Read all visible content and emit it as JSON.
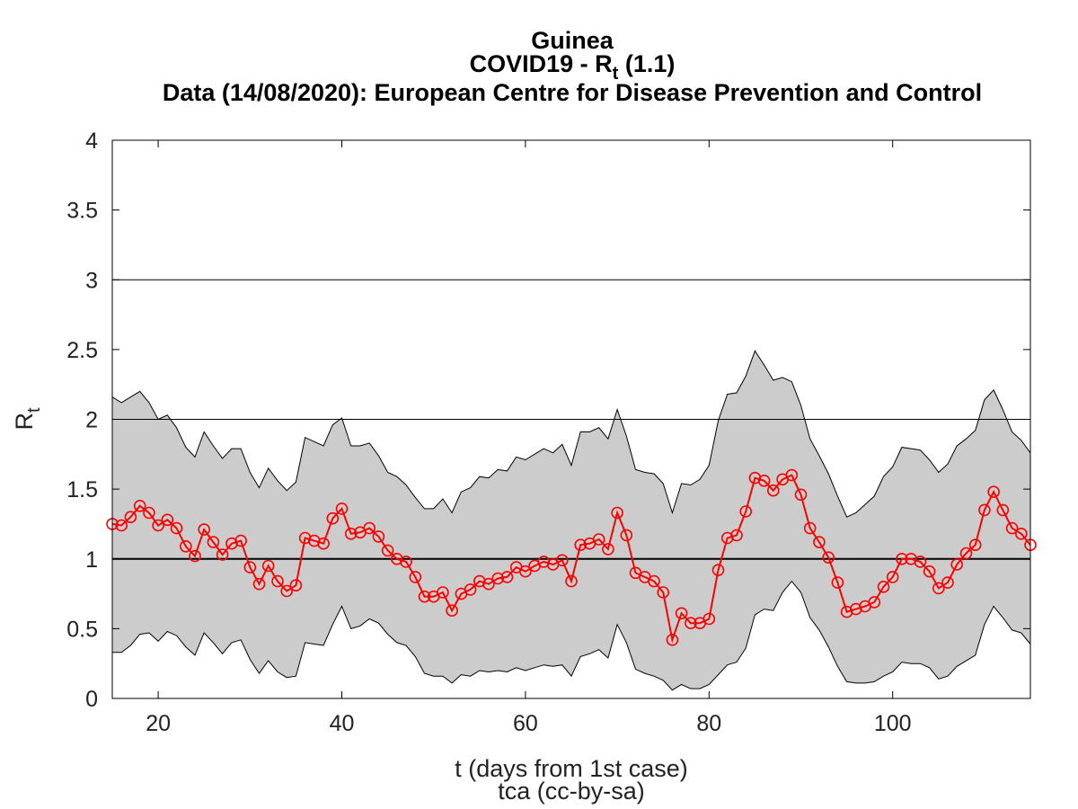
{
  "chart_data": {
    "type": "line",
    "title": "Guinea",
    "subtitle_prefix": "COVID19 - R",
    "subtitle_sub": "t",
    "subtitle_suffix": " (1.1)",
    "subtitle2": "Data (14/08/2020): European Centre for Disease Prevention and Control",
    "xlabel": "t (days from 1st case)",
    "ylabel_main": "R",
    "ylabel_sub": "t",
    "credit": "tca (cc-by-sa)",
    "xlim": [
      15,
      115
    ],
    "ylim": [
      0,
      4
    ],
    "xticks": [
      20,
      40,
      60,
      80,
      100
    ],
    "yticks": [
      0,
      0.5,
      1,
      1.5,
      2,
      2.5,
      3,
      3.5,
      4
    ],
    "ytick_labels": [
      "0",
      "0.5",
      "1",
      "1.5",
      "2",
      "2.5",
      "3",
      "3.5",
      "4"
    ],
    "hlines": [
      1,
      2,
      3
    ],
    "grid": false,
    "series": [
      {
        "color": "#ff0000",
        "marker": "circle",
        "x": [
          15,
          16,
          17,
          18,
          19,
          20,
          21,
          22,
          23,
          24,
          25,
          26,
          27,
          28,
          29,
          30,
          31,
          32,
          33,
          34,
          35,
          36,
          37,
          38,
          39,
          40,
          41,
          42,
          43,
          44,
          45,
          46,
          47,
          48,
          49,
          50,
          51,
          52,
          53,
          54,
          55,
          56,
          57,
          58,
          59,
          60,
          61,
          62,
          63,
          64,
          65,
          66,
          67,
          68,
          69,
          70,
          71,
          72,
          73,
          74,
          75,
          76,
          77,
          78,
          79,
          80,
          81,
          82,
          83,
          84,
          85,
          86,
          87,
          88,
          89,
          90,
          91,
          92,
          93,
          94,
          95,
          96,
          97,
          98,
          99,
          100,
          101,
          102,
          103,
          104,
          105,
          106,
          107,
          108,
          109,
          110,
          111,
          112,
          113,
          114,
          115
        ],
        "y": [
          1.25,
          1.24,
          1.3,
          1.38,
          1.33,
          1.24,
          1.28,
          1.22,
          1.09,
          1.02,
          1.21,
          1.12,
          1.03,
          1.11,
          1.13,
          0.94,
          0.82,
          0.95,
          0.84,
          0.77,
          0.81,
          1.15,
          1.13,
          1.11,
          1.29,
          1.36,
          1.18,
          1.19,
          1.22,
          1.16,
          1.06,
          1.0,
          0.98,
          0.87,
          0.73,
          0.73,
          0.76,
          0.63,
          0.75,
          0.78,
          0.84,
          0.82,
          0.86,
          0.87,
          0.94,
          0.91,
          0.95,
          0.98,
          0.96,
          0.99,
          0.84,
          1.1,
          1.11,
          1.14,
          1.07,
          1.33,
          1.17,
          0.9,
          0.87,
          0.84,
          0.76,
          0.42,
          0.61,
          0.54,
          0.54,
          0.57,
          0.92,
          1.15,
          1.17,
          1.34,
          1.58,
          1.56,
          1.49,
          1.57,
          1.6,
          1.46,
          1.22,
          1.12,
          1.01,
          0.83,
          0.62,
          0.64,
          0.66,
          0.69,
          0.8,
          0.87,
          1.0,
          1.0,
          0.98,
          0.91,
          0.79,
          0.83,
          0.96,
          1.04,
          1.1,
          1.35,
          1.48,
          1.35,
          1.22,
          1.18,
          1.1
        ]
      }
    ],
    "band": {
      "color": "#cccccc",
      "x": [
        15,
        16,
        17,
        18,
        19,
        20,
        21,
        22,
        23,
        24,
        25,
        26,
        27,
        28,
        29,
        30,
        31,
        32,
        33,
        34,
        35,
        36,
        37,
        38,
        39,
        40,
        41,
        42,
        43,
        44,
        45,
        46,
        47,
        48,
        49,
        50,
        51,
        52,
        53,
        54,
        55,
        56,
        57,
        58,
        59,
        60,
        61,
        62,
        63,
        64,
        65,
        66,
        67,
        68,
        69,
        70,
        71,
        72,
        73,
        74,
        75,
        76,
        77,
        78,
        79,
        80,
        81,
        82,
        83,
        84,
        85,
        86,
        87,
        88,
        89,
        90,
        91,
        92,
        93,
        94,
        95,
        96,
        97,
        98,
        99,
        100,
        101,
        102,
        103,
        104,
        105,
        106,
        107,
        108,
        109,
        110,
        111,
        112,
        113,
        114,
        115
      ],
      "upper": [
        2.16,
        2.12,
        2.16,
        2.2,
        2.12,
        2.0,
        2.03,
        1.94,
        1.8,
        1.73,
        1.91,
        1.81,
        1.72,
        1.79,
        1.79,
        1.62,
        1.51,
        1.65,
        1.56,
        1.49,
        1.55,
        1.87,
        1.84,
        1.81,
        1.96,
        2.01,
        1.81,
        1.81,
        1.83,
        1.74,
        1.62,
        1.59,
        1.53,
        1.44,
        1.36,
        1.36,
        1.43,
        1.33,
        1.48,
        1.51,
        1.59,
        1.58,
        1.64,
        1.63,
        1.73,
        1.71,
        1.75,
        1.79,
        1.76,
        1.82,
        1.67,
        1.91,
        1.91,
        1.94,
        1.86,
        2.07,
        1.88,
        1.64,
        1.62,
        1.61,
        1.54,
        1.33,
        1.54,
        1.53,
        1.57,
        1.67,
        1.99,
        2.18,
        2.19,
        2.31,
        2.49,
        2.39,
        2.28,
        2.3,
        2.27,
        2.1,
        1.86,
        1.74,
        1.61,
        1.45,
        1.3,
        1.33,
        1.39,
        1.45,
        1.59,
        1.66,
        1.8,
        1.79,
        1.78,
        1.71,
        1.62,
        1.68,
        1.81,
        1.86,
        1.92,
        2.14,
        2.21,
        2.07,
        1.91,
        1.85,
        1.76
      ],
      "lower": [
        0.33,
        0.33,
        0.38,
        0.46,
        0.47,
        0.41,
        0.48,
        0.45,
        0.37,
        0.31,
        0.47,
        0.4,
        0.32,
        0.4,
        0.42,
        0.28,
        0.18,
        0.27,
        0.19,
        0.15,
        0.16,
        0.4,
        0.39,
        0.38,
        0.53,
        0.66,
        0.5,
        0.52,
        0.57,
        0.54,
        0.46,
        0.4,
        0.38,
        0.3,
        0.18,
        0.16,
        0.16,
        0.11,
        0.17,
        0.16,
        0.2,
        0.19,
        0.2,
        0.19,
        0.22,
        0.2,
        0.22,
        0.24,
        0.23,
        0.24,
        0.16,
        0.3,
        0.32,
        0.35,
        0.29,
        0.53,
        0.4,
        0.21,
        0.18,
        0.16,
        0.13,
        0.06,
        0.1,
        0.07,
        0.07,
        0.1,
        0.17,
        0.24,
        0.26,
        0.36,
        0.6,
        0.64,
        0.63,
        0.76,
        0.84,
        0.76,
        0.58,
        0.49,
        0.37,
        0.23,
        0.12,
        0.11,
        0.11,
        0.12,
        0.16,
        0.19,
        0.26,
        0.25,
        0.25,
        0.22,
        0.14,
        0.16,
        0.23,
        0.27,
        0.31,
        0.53,
        0.66,
        0.58,
        0.49,
        0.47,
        0.39
      ]
    }
  }
}
